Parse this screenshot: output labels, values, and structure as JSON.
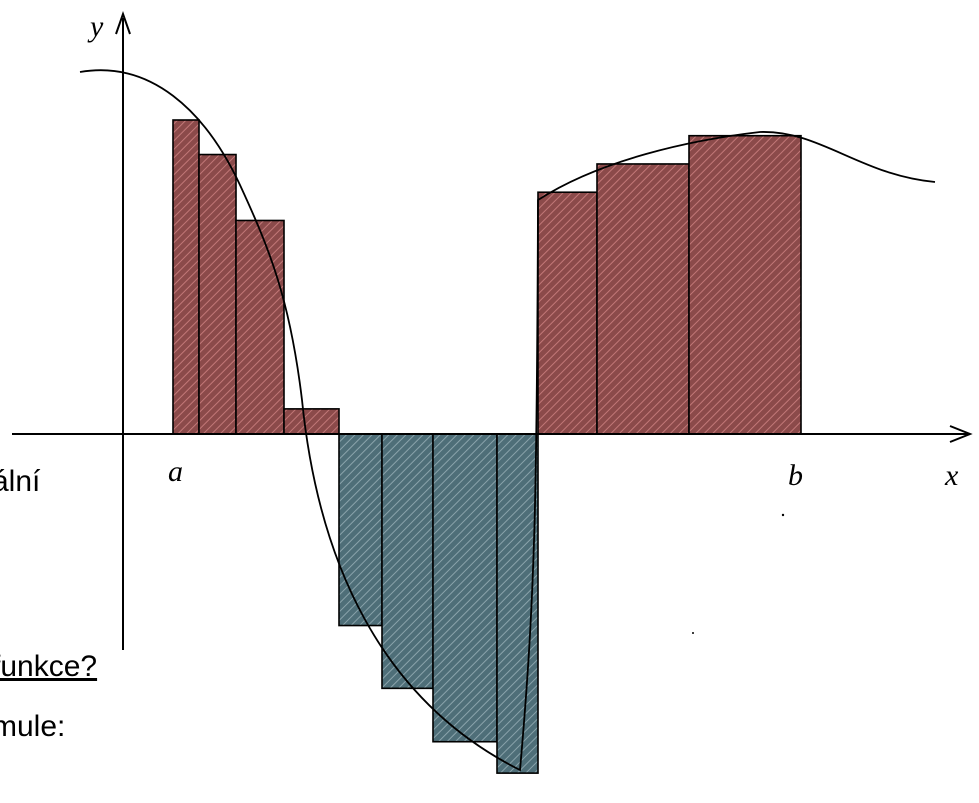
{
  "labels": {
    "y_axis": "y",
    "x_axis": "x",
    "a": "a",
    "b": "b"
  },
  "background_text": [
    "ální",
    "funkce?",
    "mule:",
    "·"
  ],
  "colors": {
    "positive_fill": "#8b4a4a",
    "positive_hatch": "#c27878",
    "negative_fill": "#4e6e78",
    "negative_hatch": "#8aa3ab",
    "line": "#000000"
  },
  "chart_data": {
    "type": "bar",
    "description_values": "Riemann-sum rectangles under a curve f(x) between a and b; heights relative to the x axis (positive above, negative below)",
    "rectangles": [
      {
        "sign": "positive",
        "value": 1.0
      },
      {
        "sign": "positive",
        "value": 0.89
      },
      {
        "sign": "positive",
        "value": 0.68
      },
      {
        "sign": "positive",
        "value": 0.08
      },
      {
        "sign": "negative",
        "value": -0.61
      },
      {
        "sign": "negative",
        "value": -0.81
      },
      {
        "sign": "negative",
        "value": -0.98
      },
      {
        "sign": "negative",
        "value": -1.08
      },
      {
        "sign": "positive",
        "value": 0.77
      },
      {
        "sign": "positive",
        "value": 0.86
      },
      {
        "sign": "positive",
        "value": 0.95
      }
    ]
  }
}
